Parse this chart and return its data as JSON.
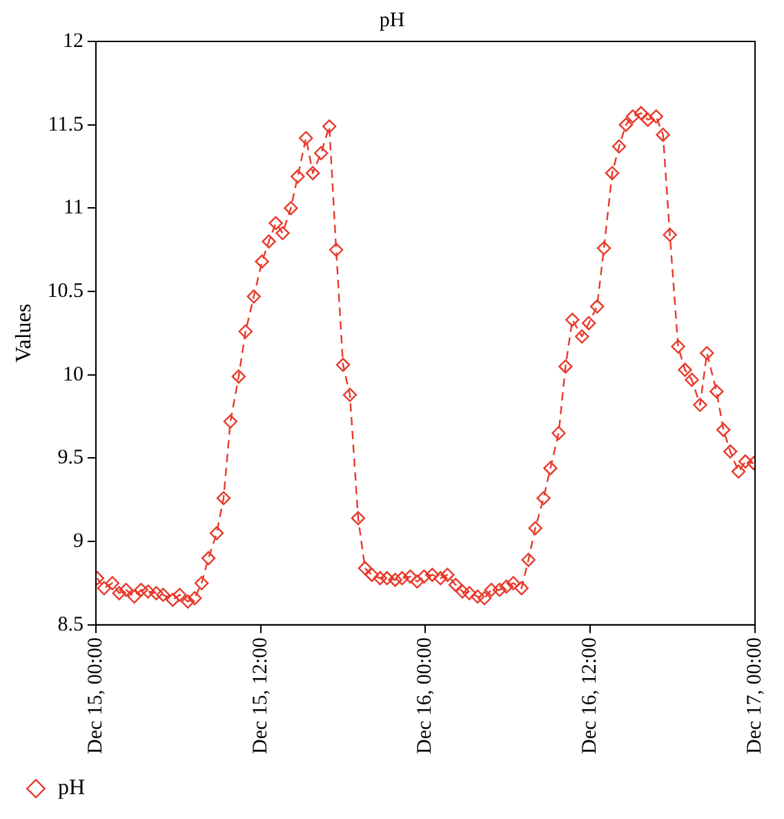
{
  "chart_data": {
    "type": "line",
    "title": "pH",
    "ylabel": "Values",
    "x": [
      "--12-15T00:06",
      "--12-15T00:36",
      "--12-15T01:12",
      "--12-15T01:42",
      "--12-15T02:12",
      "--12-15T02:48",
      "--12-15T03:18",
      "--12-15T03:48",
      "--12-15T04:24",
      "--12-15T04:54",
      "--12-15T05:36",
      "--12-15T06:06",
      "--12-15T06:42",
      "--12-15T07:12",
      "--12-15T07:42",
      "--12-15T08:12",
      "--12-15T08:48",
      "--12-15T09:18",
      "--12-15T09:48",
      "--12-15T10:24",
      "--12-15T10:54",
      "--12-15T11:30",
      "--12-15T12:06",
      "--12-15T12:36",
      "--12-15T13:06",
      "--12-15T13:36",
      "--12-15T14:12",
      "--12-15T14:42",
      "--12-15T15:18",
      "--12-15T15:48",
      "--12-15T16:24",
      "--12-15T17:00",
      "--12-15T17:30",
      "--12-15T18:00",
      "--12-15T18:30",
      "--12-15T19:06",
      "--12-15T19:36",
      "--12-15T20:06",
      "--12-15T20:42",
      "--12-15T21:12",
      "--12-15T21:48",
      "--12-15T22:18",
      "--12-15T22:54",
      "--12-15T23:24",
      "--12-15T23:54",
      "--12-16T00:30",
      "--12-16T01:06",
      "--12-16T01:36",
      "--12-16T02:12",
      "--12-16T02:42",
      "--12-16T03:12",
      "--12-16T03:48",
      "--12-16T04:18",
      "--12-16T04:48",
      "--12-16T05:24",
      "--12-16T05:54",
      "--12-16T06:24",
      "--12-16T07:00",
      "--12-16T07:30",
      "--12-16T08:00",
      "--12-16T08:36",
      "--12-16T09:06",
      "--12-16T09:42",
      "--12-16T10:12",
      "--12-16T10:42",
      "--12-16T11:24",
      "--12-16T11:54",
      "--12-16T12:30",
      "--12-16T13:00",
      "--12-16T13:36",
      "--12-16T14:06",
      "--12-16T14:36",
      "--12-16T15:06",
      "--12-16T15:42",
      "--12-16T16:12",
      "--12-16T16:48",
      "--12-16T17:18",
      "--12-16T17:48",
      "--12-16T18:24",
      "--12-16T18:54",
      "--12-16T19:24",
      "--12-16T20:00",
      "--12-16T20:30",
      "--12-16T21:12",
      "--12-16T21:42",
      "--12-16T22:12",
      "--12-16T22:48",
      "--12-16T23:18",
      "--12-16T23:54"
    ],
    "series": [
      {
        "name": "pH",
        "color": "#e8392b",
        "values": [
          8.78,
          8.72,
          8.75,
          8.69,
          8.71,
          8.67,
          8.71,
          8.7,
          8.69,
          8.68,
          8.65,
          8.68,
          8.64,
          8.66,
          8.75,
          8.9,
          9.05,
          9.26,
          9.72,
          9.99,
          10.26,
          10.47,
          10.68,
          10.8,
          10.91,
          10.85,
          11.0,
          11.19,
          11.42,
          11.21,
          11.33,
          11.49,
          10.75,
          10.06,
          9.88,
          9.14,
          8.84,
          8.8,
          8.78,
          8.78,
          8.77,
          8.78,
          8.79,
          8.76,
          8.79,
          8.8,
          8.78,
          8.8,
          8.74,
          8.7,
          8.69,
          8.67,
          8.66,
          8.71,
          8.71,
          8.73,
          8.75,
          8.72,
          8.89,
          9.08,
          9.26,
          9.44,
          9.65,
          10.05,
          10.33,
          10.23,
          10.31,
          10.41,
          10.76,
          11.21,
          11.37,
          11.5,
          11.55,
          11.57,
          11.53,
          11.55,
          11.44,
          10.84,
          10.17,
          10.03,
          9.97,
          9.82,
          10.13,
          9.9,
          9.67,
          9.54,
          9.42,
          9.48,
          9.47
        ]
      }
    ],
    "xlim": [
      "--12-15T00:00",
      "--12-17T00:00"
    ],
    "xticks": [
      {
        "value": "--12-15T00:00",
        "label": "Dec 15, 00:00"
      },
      {
        "value": "--12-15T12:00",
        "label": "Dec 15, 12:00"
      },
      {
        "value": "--12-16T00:00",
        "label": "Dec 16, 00:00"
      },
      {
        "value": "--12-16T12:00",
        "label": "Dec 16, 12:00"
      },
      {
        "value": "--12-17T00:00",
        "label": "Dec 17, 00:00"
      }
    ],
    "ylim": [
      8.5,
      12
    ],
    "yticks": [
      8.5,
      9,
      9.5,
      10,
      10.5,
      11,
      11.5,
      12
    ],
    "legend": "bottom left",
    "marker": "diamond",
    "line_style": "dashed",
    "grid": false
  }
}
